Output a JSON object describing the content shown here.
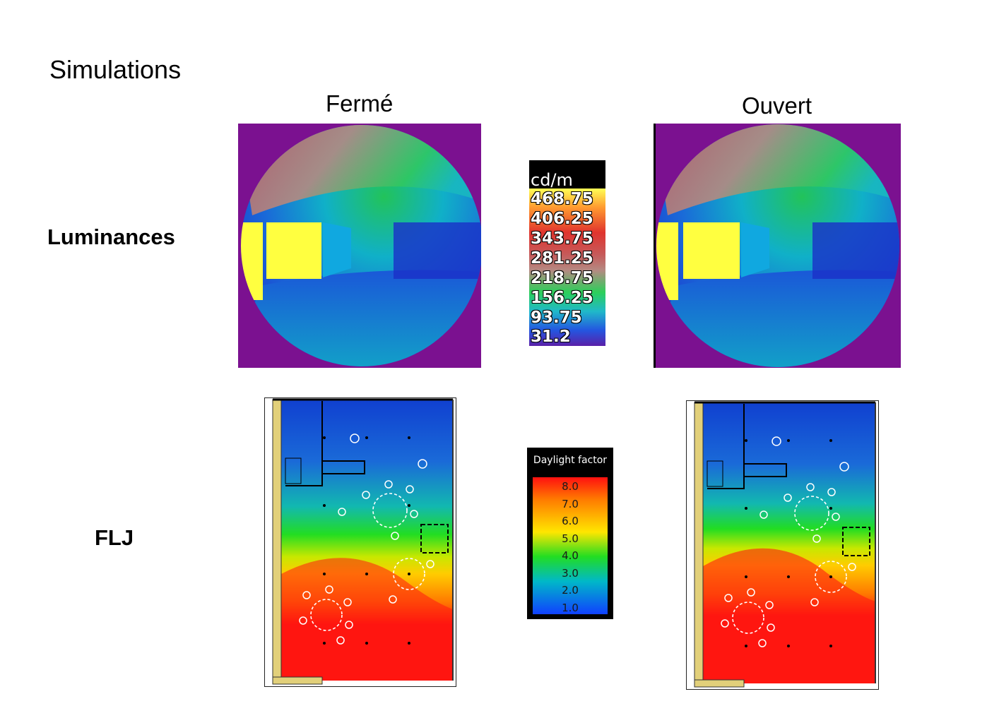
{
  "title": "Simulations",
  "columns": {
    "closed": "Fermé",
    "open": "Ouvert"
  },
  "rows": {
    "luminance": "Luminances",
    "daylight": "FLJ"
  },
  "luminance_legend": {
    "unit": "cd/m",
    "values": [
      "468.75",
      "406.25",
      "343.75",
      "281.25",
      "218.75",
      "156.25",
      "93.75",
      "31.2"
    ]
  },
  "daylight_legend": {
    "title": "Daylight factor",
    "values": [
      "8.0",
      "7.0",
      "6.0",
      "5.0",
      "4.0",
      "3.0",
      "2.0",
      "1.0"
    ]
  },
  "colors": {
    "background_purple": "#7b1190",
    "window_yellow": "#ffff40",
    "plan_blue": "#1848c8",
    "plan_red": "#ff1010"
  }
}
